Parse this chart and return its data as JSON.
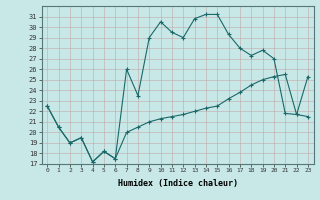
{
  "xlabel": "Humidex (Indice chaleur)",
  "bg_color": "#c8e8e8",
  "grid_color": "#b8d8d8",
  "line_color": "#1a6868",
  "ylim": [
    17,
    32
  ],
  "xlim": [
    -0.5,
    23.5
  ],
  "yticks": [
    17,
    18,
    19,
    20,
    21,
    22,
    23,
    24,
    25,
    26,
    27,
    28,
    29,
    30,
    31
  ],
  "xticks": [
    0,
    1,
    2,
    3,
    4,
    5,
    6,
    7,
    8,
    9,
    10,
    11,
    12,
    13,
    14,
    15,
    16,
    17,
    18,
    19,
    20,
    21,
    22,
    23
  ],
  "line1_x": [
    0,
    1,
    2,
    3,
    4,
    5,
    6,
    7,
    8,
    9,
    10,
    11,
    12,
    13,
    14,
    15,
    16,
    17,
    18,
    19,
    20,
    21,
    22,
    23
  ],
  "line1_y": [
    22.5,
    20.5,
    19.0,
    19.5,
    17.2,
    18.2,
    17.5,
    26.0,
    23.5,
    29.0,
    30.5,
    29.5,
    29.0,
    30.8,
    31.2,
    31.2,
    29.3,
    28.0,
    27.3,
    27.8,
    27.0,
    21.8,
    21.7,
    25.3
  ],
  "line2_x": [
    0,
    1,
    2,
    3,
    4,
    5,
    6,
    7,
    8,
    9,
    10,
    11,
    12,
    13,
    14,
    15,
    16,
    17,
    18,
    19,
    20,
    21,
    22,
    23
  ],
  "line2_y": [
    22.5,
    20.5,
    19.0,
    19.5,
    17.2,
    18.2,
    17.5,
    20.0,
    20.5,
    21.0,
    21.3,
    21.5,
    21.7,
    22.0,
    22.3,
    22.5,
    23.2,
    23.8,
    24.5,
    25.0,
    25.3,
    25.5,
    21.7,
    21.5
  ]
}
